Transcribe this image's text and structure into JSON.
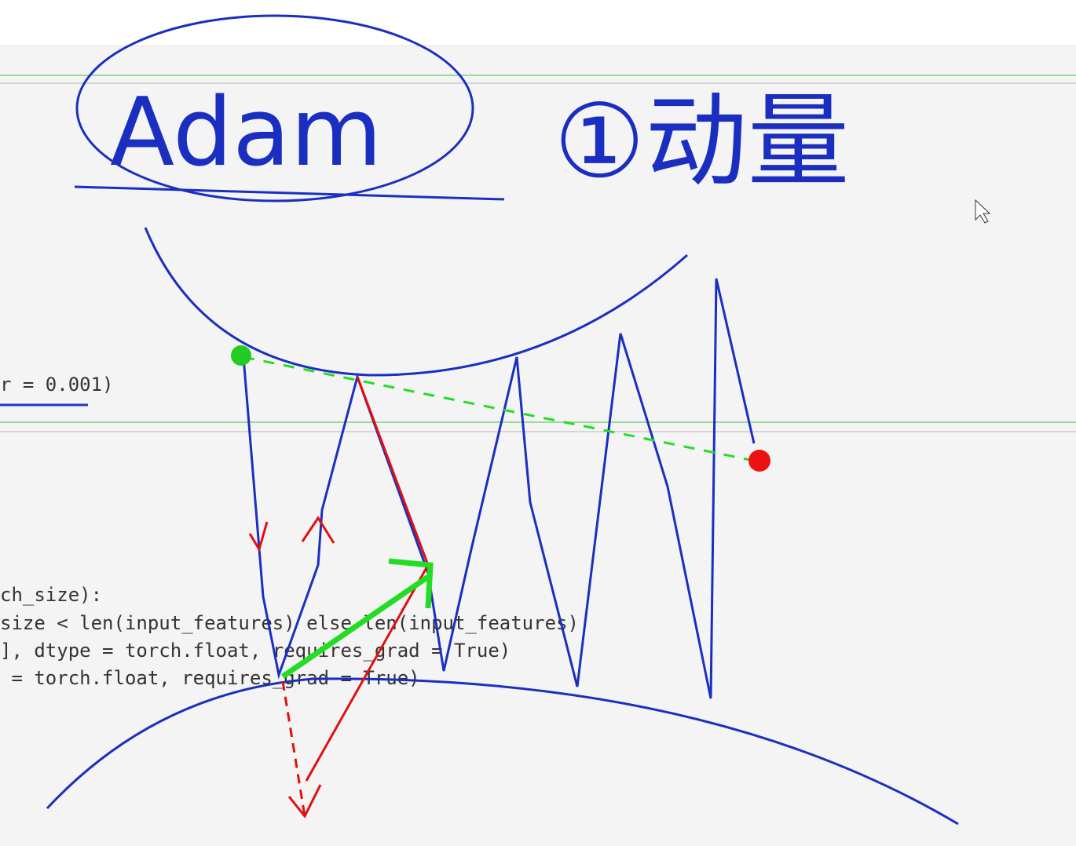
{
  "annotations": {
    "title": "Adam",
    "note": "①动量"
  },
  "code": {
    "lines": [
      "r = 0.001)",
      "ch_size):",
      "size < len(input_features) else len(input_features)",
      "], dtype = torch.float, requires_grad = True)",
      " = torch.float, requires_grad = True)"
    ]
  }
}
